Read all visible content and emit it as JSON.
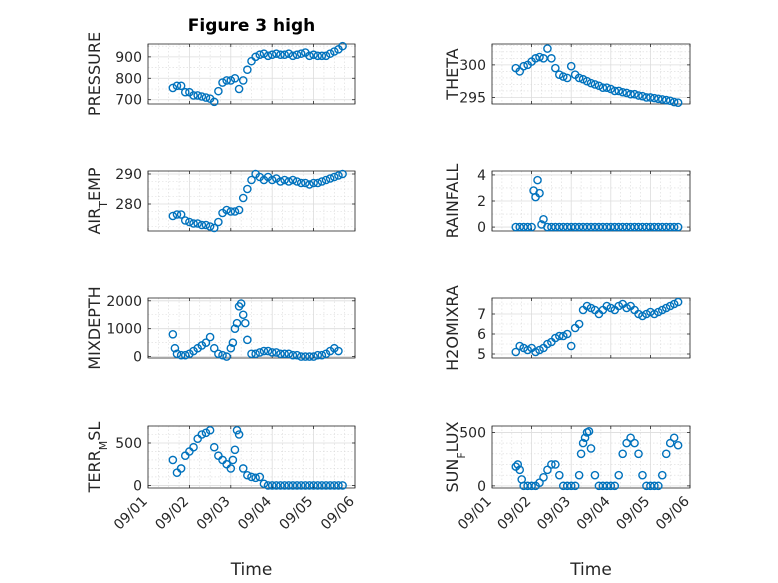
{
  "figure": {
    "title": "Figure 3 high"
  },
  "chart_data": {
    "type": "scatter",
    "grid": "on (major and minor)",
    "marker": "open circle",
    "marker_color": "#0072BD",
    "x_tick_labels": [
      "09/01",
      "09/02",
      "09/03",
      "09/04",
      "09/05",
      "09/06"
    ],
    "x_ticks": [
      0,
      1,
      2,
      3,
      4,
      5
    ],
    "xlabel": "Time",
    "panels": [
      {
        "id": "pressure",
        "title": "Figure 3 high",
        "ylabel": "PRESSURE",
        "ylim": [
          680,
          960
        ],
        "yticks": [
          700,
          800,
          900
        ],
        "ytick_labels": [
          "700",
          "800",
          "900"
        ],
        "minor_step": 50,
        "x": [
          0.6,
          0.7,
          0.8,
          0.9,
          1.0,
          1.1,
          1.2,
          1.3,
          1.4,
          1.5,
          1.6,
          1.7,
          1.8,
          1.9,
          2.0,
          2.1,
          2.2,
          2.3,
          2.4,
          2.5,
          2.6,
          2.7,
          2.8,
          2.9,
          3.0,
          3.1,
          3.2,
          3.3,
          3.4,
          3.5,
          3.6,
          3.7,
          3.8,
          3.9,
          4.0,
          4.1,
          4.2,
          4.3,
          4.4,
          4.5,
          4.6,
          4.7
        ],
        "y": [
          755,
          765,
          765,
          735,
          735,
          720,
          720,
          715,
          710,
          705,
          690,
          740,
          780,
          790,
          790,
          800,
          750,
          790,
          840,
          880,
          900,
          910,
          915,
          905,
          910,
          915,
          910,
          910,
          915,
          905,
          910,
          915,
          920,
          905,
          910,
          905,
          905,
          905,
          915,
          925,
          935,
          950
        ]
      },
      {
        "id": "theta",
        "ylabel": "THETA",
        "ylim": [
          294,
          303.2
        ],
        "yticks": [
          295,
          300
        ],
        "ytick_labels": [
          "295",
          "300"
        ],
        "minor_step": 1,
        "x": [
          0.6,
          0.7,
          0.8,
          0.9,
          1.0,
          1.1,
          1.2,
          1.3,
          1.4,
          1.5,
          1.6,
          1.7,
          1.8,
          1.9,
          2.0,
          2.1,
          2.2,
          2.3,
          2.4,
          2.5,
          2.6,
          2.7,
          2.8,
          2.9,
          3.0,
          3.1,
          3.2,
          3.3,
          3.4,
          3.5,
          3.6,
          3.7,
          3.8,
          3.9,
          4.0,
          4.1,
          4.2,
          4.3,
          4.4,
          4.5,
          4.6,
          4.7
        ],
        "y": [
          299.5,
          299.0,
          299.8,
          300.0,
          300.5,
          301.0,
          301.2,
          301.0,
          302.5,
          301.0,
          299.5,
          298.5,
          298.2,
          298.0,
          299.8,
          298.5,
          298.0,
          297.8,
          297.5,
          297.2,
          297.0,
          296.8,
          296.5,
          296.5,
          296.3,
          296.0,
          296.0,
          295.8,
          295.7,
          295.5,
          295.5,
          295.3,
          295.2,
          295.0,
          295.0,
          294.9,
          294.8,
          294.7,
          294.6,
          294.5,
          294.3,
          294.2
        ]
      },
      {
        "id": "air-temp",
        "ylabel": "AIR_TEMP",
        "ylim": [
          271,
          291
        ],
        "yticks": [
          280,
          290
        ],
        "ytick_labels": [
          "280",
          "290"
        ],
        "minor_step": 2.5,
        "x": [
          0.6,
          0.7,
          0.8,
          0.9,
          1.0,
          1.1,
          1.2,
          1.3,
          1.4,
          1.5,
          1.6,
          1.7,
          1.8,
          1.9,
          2.0,
          2.1,
          2.2,
          2.3,
          2.4,
          2.5,
          2.6,
          2.7,
          2.8,
          2.9,
          3.0,
          3.1,
          3.2,
          3.3,
          3.4,
          3.5,
          3.6,
          3.7,
          3.8,
          3.9,
          4.0,
          4.1,
          4.2,
          4.3,
          4.4,
          4.5,
          4.6,
          4.7
        ],
        "y": [
          276,
          276.5,
          276.5,
          274.5,
          274,
          273.5,
          273.5,
          273,
          273,
          272.5,
          272,
          274,
          277,
          278,
          277.5,
          277.5,
          278,
          282,
          285,
          288,
          290,
          289,
          288,
          289,
          288,
          288.5,
          287.5,
          288,
          287.5,
          288,
          287.5,
          287,
          287,
          286.5,
          287,
          287,
          287.5,
          288,
          288.5,
          289,
          289.5,
          290
        ]
      },
      {
        "id": "rainfall",
        "ylabel": "RAINFALL",
        "ylim": [
          -0.3,
          4.3
        ],
        "yticks": [
          0,
          2,
          4
        ],
        "ytick_labels": [
          "0",
          "2",
          "4"
        ],
        "minor_step": 1,
        "x": [
          0.6,
          0.7,
          0.8,
          0.9,
          1.0,
          1.05,
          1.1,
          1.15,
          1.2,
          1.25,
          1.3,
          1.4,
          1.5,
          1.6,
          1.7,
          1.8,
          1.9,
          2.0,
          2.1,
          2.2,
          2.3,
          2.4,
          2.5,
          2.6,
          2.7,
          2.8,
          2.9,
          3.0,
          3.1,
          3.2,
          3.3,
          3.4,
          3.5,
          3.6,
          3.7,
          3.8,
          3.9,
          4.0,
          4.1,
          4.2,
          4.3,
          4.4,
          4.5,
          4.6,
          4.7
        ],
        "y": [
          0,
          0,
          0,
          0,
          0,
          2.8,
          2.3,
          3.6,
          2.6,
          0.2,
          0.6,
          0,
          0,
          0,
          0,
          0,
          0,
          0,
          0,
          0,
          0,
          0,
          0,
          0,
          0,
          0,
          0,
          0,
          0,
          0,
          0,
          0,
          0,
          0,
          0,
          0,
          0,
          0,
          0,
          0,
          0,
          0,
          0,
          0,
          0
        ]
      },
      {
        "id": "mixdepth",
        "ylabel": "MIXDEPTH",
        "ylim": [
          -50,
          2100
        ],
        "yticks": [
          0,
          1000,
          2000
        ],
        "ytick_labels": [
          "0",
          "1000",
          "2000"
        ],
        "minor_step": 500,
        "x": [
          0.6,
          0.65,
          0.7,
          0.8,
          0.9,
          1.0,
          1.1,
          1.2,
          1.3,
          1.4,
          1.5,
          1.6,
          1.7,
          1.8,
          1.9,
          2.0,
          2.05,
          2.1,
          2.15,
          2.2,
          2.25,
          2.3,
          2.35,
          2.4,
          2.5,
          2.6,
          2.7,
          2.8,
          2.9,
          3.0,
          3.1,
          3.2,
          3.3,
          3.4,
          3.5,
          3.6,
          3.7,
          3.8,
          3.9,
          4.0,
          4.1,
          4.2,
          4.3,
          4.4,
          4.5,
          4.6
        ],
        "y": [
          800,
          300,
          100,
          50,
          50,
          100,
          200,
          300,
          400,
          500,
          700,
          300,
          100,
          50,
          0,
          300,
          500,
          1000,
          1200,
          1800,
          1900,
          1500,
          1200,
          600,
          100,
          100,
          150,
          200,
          200,
          150,
          150,
          100,
          100,
          100,
          50,
          50,
          0,
          0,
          0,
          0,
          50,
          50,
          100,
          200,
          300,
          200
        ]
      },
      {
        "id": "h2omixra",
        "ylabel": "H2OMIXRA",
        "ylim": [
          4.8,
          7.8
        ],
        "yticks": [
          5,
          6,
          7
        ],
        "ytick_labels": [
          "5",
          "6",
          "7"
        ],
        "minor_step": 0.5,
        "x": [
          0.6,
          0.7,
          0.8,
          0.9,
          1.0,
          1.1,
          1.2,
          1.3,
          1.4,
          1.5,
          1.6,
          1.7,
          1.8,
          1.9,
          2.0,
          2.1,
          2.2,
          2.3,
          2.4,
          2.5,
          2.6,
          2.7,
          2.8,
          2.9,
          3.0,
          3.1,
          3.2,
          3.3,
          3.4,
          3.5,
          3.6,
          3.7,
          3.8,
          3.9,
          4.0,
          4.1,
          4.2,
          4.3,
          4.4,
          4.5,
          4.6,
          4.7
        ],
        "y": [
          5.1,
          5.4,
          5.3,
          5.2,
          5.3,
          5.1,
          5.2,
          5.3,
          5.5,
          5.6,
          5.8,
          5.9,
          5.9,
          6.0,
          5.4,
          6.3,
          6.5,
          7.2,
          7.4,
          7.3,
          7.2,
          7.0,
          7.2,
          7.4,
          7.3,
          7.2,
          7.4,
          7.5,
          7.3,
          7.4,
          7.2,
          7.0,
          6.9,
          7.0,
          7.1,
          7.0,
          7.1,
          7.2,
          7.3,
          7.4,
          7.5,
          7.6
        ]
      },
      {
        "id": "terr-msl",
        "ylabel": "TERR_MSL",
        "ylim": [
          -30,
          700
        ],
        "yticks": [
          0,
          500
        ],
        "ytick_labels": [
          "0",
          "500"
        ],
        "minor_step": 100,
        "x": [
          0.6,
          0.7,
          0.8,
          0.9,
          1.0,
          1.1,
          1.2,
          1.3,
          1.4,
          1.5,
          1.6,
          1.7,
          1.8,
          1.9,
          2.0,
          2.05,
          2.1,
          2.15,
          2.2,
          2.3,
          2.4,
          2.5,
          2.6,
          2.7,
          2.8,
          2.9,
          3.0,
          3.1,
          3.2,
          3.3,
          3.4,
          3.5,
          3.6,
          3.7,
          3.8,
          3.9,
          4.0,
          4.1,
          4.2,
          4.3,
          4.4,
          4.5,
          4.6,
          4.7
        ],
        "y": [
          300,
          150,
          200,
          350,
          400,
          450,
          550,
          600,
          620,
          650,
          450,
          350,
          300,
          250,
          200,
          300,
          420,
          650,
          600,
          200,
          120,
          100,
          90,
          100,
          20,
          0,
          0,
          0,
          0,
          0,
          0,
          0,
          0,
          0,
          0,
          0,
          0,
          0,
          0,
          0,
          0,
          0,
          0,
          0
        ]
      },
      {
        "id": "sun-flux",
        "ylabel": "SUN_FLUX",
        "ylim": [
          -20,
          560
        ],
        "yticks": [
          0,
          500
        ],
        "ytick_labels": [
          "0",
          "500"
        ],
        "minor_step": 100,
        "x": [
          0.6,
          0.65,
          0.7,
          0.75,
          0.8,
          0.9,
          1.0,
          1.1,
          1.2,
          1.3,
          1.4,
          1.5,
          1.6,
          1.7,
          1.8,
          1.9,
          2.0,
          2.1,
          2.2,
          2.25,
          2.3,
          2.35,
          2.4,
          2.45,
          2.5,
          2.6,
          2.7,
          2.8,
          2.9,
          3.0,
          3.1,
          3.2,
          3.3,
          3.4,
          3.5,
          3.6,
          3.7,
          3.8,
          3.9,
          4.0,
          4.1,
          4.2,
          4.3,
          4.4,
          4.5,
          4.6,
          4.7
        ],
        "y": [
          180,
          200,
          150,
          60,
          0,
          0,
          0,
          0,
          30,
          80,
          150,
          200,
          200,
          100,
          0,
          0,
          0,
          0,
          100,
          300,
          400,
          450,
          500,
          510,
          350,
          100,
          0,
          0,
          0,
          0,
          0,
          100,
          300,
          400,
          450,
          400,
          300,
          100,
          0,
          0,
          0,
          0,
          100,
          300,
          400,
          450,
          380
        ]
      }
    ]
  }
}
